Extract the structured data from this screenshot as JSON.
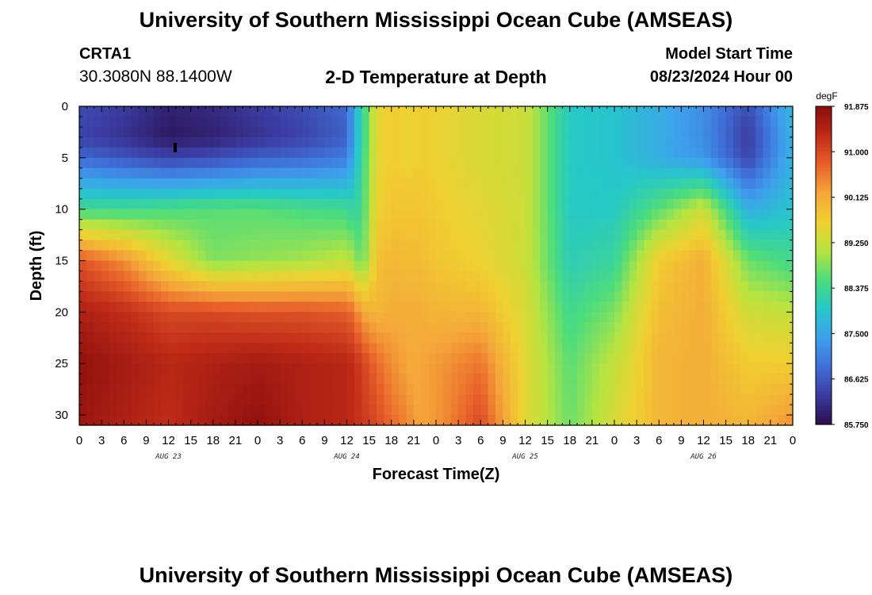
{
  "header": {
    "title": "University of Southern Mississippi Ocean Cube (AMSEAS)",
    "station": "CRTA1",
    "coords": "30.3080N  88.1400W",
    "model_label": "Model Start Time",
    "model_time": "08/23/2024 Hour 00"
  },
  "footer": {
    "title": "University of Southern Mississippi Ocean Cube (AMSEAS)"
  },
  "chart_data": {
    "type": "heatmap",
    "title": "2-D Temperature at Depth",
    "xlabel": "Forecast Time(Z)",
    "ylabel": "Depth (ft)",
    "units": "degF",
    "x_range_hours": [
      0,
      96
    ],
    "y_range_ft": [
      0,
      31
    ],
    "y_inverted": true,
    "x_ticks": [
      "0",
      "3",
      "6",
      "9",
      "12",
      "15",
      "18",
      "21",
      "0",
      "3",
      "6",
      "9",
      "12",
      "15",
      "18",
      "21",
      "0",
      "3",
      "6",
      "9",
      "12",
      "15",
      "18",
      "21",
      "0",
      "3",
      "6",
      "9",
      "12",
      "15",
      "18",
      "21",
      "0"
    ],
    "x_day_labels": [
      {
        "label": "AUG 23",
        "hour": 12
      },
      {
        "label": "AUG 24",
        "hour": 36
      },
      {
        "label": "AUG 25",
        "hour": 60
      },
      {
        "label": "AUG 26",
        "hour": 84
      }
    ],
    "y_ticks": [
      0,
      5,
      10,
      15,
      20,
      25,
      30
    ],
    "colorbar": {
      "min": 85.75,
      "max": 91.875,
      "labels": [
        "91.875",
        "91.000",
        "90.125",
        "89.250",
        "88.375",
        "87.500",
        "86.625",
        "85.750"
      ],
      "colors": [
        "#2a0d4a",
        "#3b3ba0",
        "#3f6fd8",
        "#3ea0ee",
        "#26c8c8",
        "#4cdc7c",
        "#b8e440",
        "#f0d030",
        "#f5a63a",
        "#e8602a",
        "#c02a18",
        "#8a0e0c"
      ]
    },
    "depth_levels_ft": [
      0,
      3,
      5,
      10,
      15,
      20,
      25,
      31
    ],
    "hour_levels": [
      0,
      6,
      12,
      18,
      24,
      30,
      36,
      37,
      38,
      40,
      42,
      44,
      45,
      46,
      48,
      54,
      60,
      66,
      72,
      78,
      84,
      90,
      96
    ],
    "temperature_degF": [
      [
        86.5,
        86.3,
        86.0,
        86.1,
        86.3,
        86.5,
        86.8,
        87.6,
        88.2,
        89.5,
        89.7,
        89.6,
        89.6,
        89.7,
        89.6,
        89.4,
        89.3,
        88.0,
        87.9,
        87.6,
        87.2,
        86.5,
        87.8
      ],
      [
        86.4,
        86.2,
        85.9,
        86.0,
        86.2,
        86.4,
        86.7,
        87.6,
        88.2,
        89.5,
        89.7,
        89.6,
        89.6,
        89.7,
        89.6,
        89.4,
        89.3,
        88.0,
        87.9,
        87.6,
        87.2,
        86.3,
        87.7
      ],
      [
        86.8,
        86.6,
        86.4,
        86.5,
        86.7,
        86.8,
        87.0,
        87.7,
        88.3,
        89.5,
        89.7,
        89.6,
        89.6,
        89.7,
        89.6,
        89.4,
        89.3,
        88.0,
        87.9,
        87.6,
        87.3,
        86.4,
        87.7
      ],
      [
        88.4,
        88.4,
        88.5,
        88.6,
        88.6,
        88.5,
        88.4,
        88.2,
        88.4,
        89.6,
        89.8,
        89.8,
        89.8,
        89.8,
        89.7,
        89.5,
        89.3,
        88.0,
        88.0,
        88.6,
        89.3,
        87.6,
        87.9
      ],
      [
        90.9,
        90.4,
        89.5,
        88.8,
        88.9,
        89.0,
        89.2,
        89.0,
        88.6,
        89.8,
        90.0,
        89.9,
        89.9,
        89.9,
        89.8,
        89.6,
        89.3,
        88.1,
        88.3,
        89.7,
        90.1,
        88.7,
        88.4
      ],
      [
        91.5,
        91.3,
        91.0,
        91.0,
        90.9,
        90.9,
        90.8,
        90.6,
        90.2,
        90.0,
        90.1,
        90.1,
        90.1,
        90.1,
        90.0,
        90.0,
        89.4,
        88.4,
        88.8,
        89.9,
        90.1,
        89.3,
        89.2
      ],
      [
        91.8,
        91.6,
        91.4,
        91.5,
        91.6,
        91.5,
        91.4,
        91.3,
        91.1,
        90.7,
        90.4,
        90.2,
        90.1,
        90.2,
        90.3,
        90.6,
        89.5,
        88.6,
        89.2,
        90.0,
        90.1,
        89.7,
        89.7
      ],
      [
        91.7,
        91.5,
        91.3,
        91.6,
        91.8,
        91.5,
        91.4,
        91.3,
        91.2,
        91.0,
        90.7,
        90.5,
        90.3,
        90.2,
        90.3,
        91.0,
        89.5,
        88.7,
        89.4,
        90.0,
        90.1,
        90.0,
        90.4
      ]
    ]
  }
}
